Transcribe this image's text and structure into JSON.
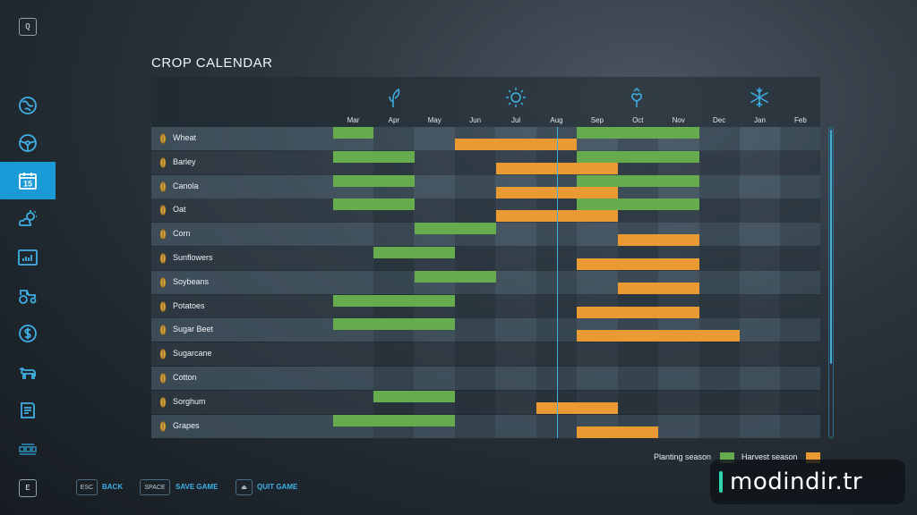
{
  "sidebar": {
    "top_key": "Q",
    "bottom_key": "E",
    "items": [
      {
        "name": "map-icon",
        "active": false
      },
      {
        "name": "steering-wheel-icon",
        "active": false
      },
      {
        "name": "calendar-icon",
        "label": "15",
        "active": true
      },
      {
        "name": "weather-icon",
        "active": false
      },
      {
        "name": "statistics-icon",
        "active": false
      },
      {
        "name": "tractor-icon",
        "active": false
      },
      {
        "name": "dollar-icon",
        "active": false
      },
      {
        "name": "cow-icon",
        "active": false
      },
      {
        "name": "contracts-icon",
        "active": false
      },
      {
        "name": "production-icon",
        "active": false
      }
    ]
  },
  "title": "CROP CALENDAR",
  "seasons": [
    "spring-sprout-icon",
    "summer-sun-icon",
    "autumn-leaf-icon",
    "winter-snowflake-icon"
  ],
  "months": [
    "Mar",
    "Apr",
    "May",
    "Jun",
    "Jul",
    "Aug",
    "Sep",
    "Oct",
    "Nov",
    "Dec",
    "Jan",
    "Feb"
  ],
  "today_month_fraction": 5.5,
  "crops": [
    {
      "name": "Wheat",
      "icon": "wheat-icon",
      "plant": [
        [
          0,
          1
        ],
        [
          6,
          9
        ]
      ],
      "harvest": [
        [
          3,
          6
        ]
      ]
    },
    {
      "name": "Barley",
      "icon": "barley-icon",
      "plant": [
        [
          0,
          2
        ],
        [
          6,
          9
        ]
      ],
      "harvest": [
        [
          4,
          7
        ]
      ]
    },
    {
      "name": "Canola",
      "icon": "canola-icon",
      "plant": [
        [
          0,
          2
        ],
        [
          6,
          9
        ]
      ],
      "harvest": [
        [
          4,
          7
        ]
      ]
    },
    {
      "name": "Oat",
      "icon": "oat-icon",
      "plant": [
        [
          0,
          2
        ],
        [
          6,
          9
        ]
      ],
      "harvest": [
        [
          4,
          7
        ]
      ]
    },
    {
      "name": "Corn",
      "icon": "corn-icon",
      "plant": [
        [
          2,
          4
        ]
      ],
      "harvest": [
        [
          7,
          9
        ]
      ]
    },
    {
      "name": "Sunflowers",
      "icon": "sunflower-icon",
      "plant": [
        [
          1,
          3
        ]
      ],
      "harvest": [
        [
          6,
          9
        ]
      ]
    },
    {
      "name": "Soybeans",
      "icon": "soybean-icon",
      "plant": [
        [
          2,
          4
        ]
      ],
      "harvest": [
        [
          7,
          9
        ]
      ]
    },
    {
      "name": "Potatoes",
      "icon": "potato-icon",
      "plant": [
        [
          0,
          3
        ]
      ],
      "harvest": [
        [
          6,
          9
        ]
      ]
    },
    {
      "name": "Sugar Beet",
      "icon": "sugar-beet-icon",
      "plant": [
        [
          0,
          3
        ]
      ],
      "harvest": [
        [
          6,
          10
        ]
      ]
    },
    {
      "name": "Sugarcane",
      "icon": "sugarcane-icon",
      "plant": [],
      "harvest": []
    },
    {
      "name": "Cotton",
      "icon": "cotton-icon",
      "plant": [],
      "harvest": []
    },
    {
      "name": "Sorghum",
      "icon": "sorghum-icon",
      "plant": [
        [
          1,
          3
        ]
      ],
      "harvest": [
        [
          5,
          7
        ]
      ]
    },
    {
      "name": "Grapes",
      "icon": "grapes-icon",
      "plant": [
        [
          0,
          3
        ]
      ],
      "harvest": [
        [
          6,
          8
        ]
      ]
    }
  ],
  "legend": {
    "planting": "Planting season",
    "harvest": "Harvest season",
    "planting_color": "#66ac4f",
    "harvest_color": "#e99a32"
  },
  "footer": [
    {
      "key": "ESC",
      "label": "BACK"
    },
    {
      "key": "SPACE",
      "label": "SAVE GAME"
    },
    {
      "key": "⏏",
      "label": "QUIT GAME"
    }
  ],
  "watermark": "modindir.tr"
}
